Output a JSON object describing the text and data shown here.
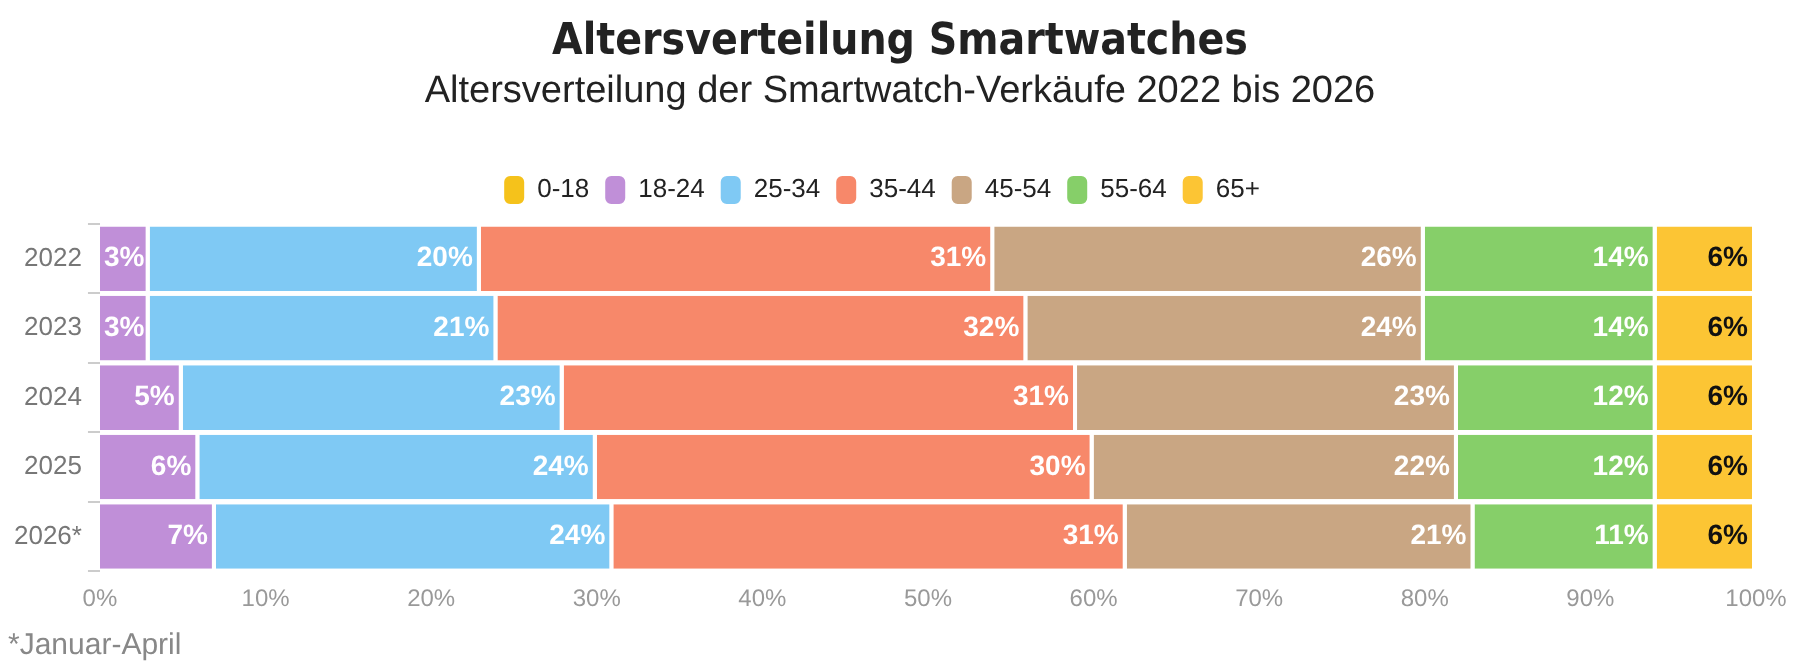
{
  "chart_data": {
    "type": "bar",
    "orientation": "horizontal",
    "stacked": true,
    "title": "Altersverteilung Smartwatches",
    "subtitle": "Altersverteilung der Smartwatch-Verkäufe 2022 bis 2026",
    "annotations": [
      "*Januar-April"
    ],
    "categories": [
      "2022",
      "2023",
      "2024",
      "2025",
      "2026*"
    ],
    "series": [
      {
        "name": "0-18",
        "color": "#f5c21b",
        "values": [
          0,
          0,
          0,
          0,
          0
        ],
        "value_labels": [
          null,
          null,
          null,
          null,
          null
        ]
      },
      {
        "name": "18-24",
        "color": "#c08fd8",
        "values": [
          3,
          3,
          5,
          6,
          7
        ],
        "value_labels": [
          "3%",
          "3%",
          "5%",
          "6%",
          "7%"
        ]
      },
      {
        "name": "25-34",
        "color": "#7fc9f4",
        "values": [
          20,
          21,
          23,
          24,
          24
        ],
        "value_labels": [
          "20%",
          "21%",
          "23%",
          "24%",
          "24%"
        ]
      },
      {
        "name": "35-44",
        "color": "#f7886a",
        "values": [
          31,
          32,
          31,
          30,
          31
        ],
        "value_labels": [
          "31%",
          "32%",
          "31%",
          "30%",
          "31%"
        ]
      },
      {
        "name": "45-54",
        "color": "#c9a683",
        "values": [
          26,
          24,
          23,
          22,
          21
        ],
        "value_labels": [
          "26%",
          "24%",
          "23%",
          "22%",
          "21%"
        ]
      },
      {
        "name": "55-64",
        "color": "#86cf69",
        "values": [
          14,
          14,
          12,
          12,
          11
        ],
        "value_labels": [
          "14%",
          "14%",
          "12%",
          "12%",
          "11%"
        ]
      },
      {
        "name": "65+",
        "color": "#fcc534",
        "values": [
          6,
          6,
          6,
          6,
          6
        ],
        "value_labels": [
          "6%",
          "6%",
          "6%",
          "6%",
          "6%"
        ]
      }
    ],
    "xlim": [
      0,
      100
    ],
    "xticks": [
      {
        "value": 0,
        "label": "0%"
      },
      {
        "value": 10,
        "label": "10%"
      },
      {
        "value": 20,
        "label": "20%"
      },
      {
        "value": 30,
        "label": "30%"
      },
      {
        "value": 40,
        "label": "40%"
      },
      {
        "value": 50,
        "label": "50%"
      },
      {
        "value": 60,
        "label": "60%"
      },
      {
        "value": 70,
        "label": "70%"
      },
      {
        "value": 80,
        "label": "80%"
      },
      {
        "value": 90,
        "label": "90%"
      },
      {
        "value": 100,
        "label": "100%"
      }
    ],
    "grid": false,
    "legend": "top"
  }
}
